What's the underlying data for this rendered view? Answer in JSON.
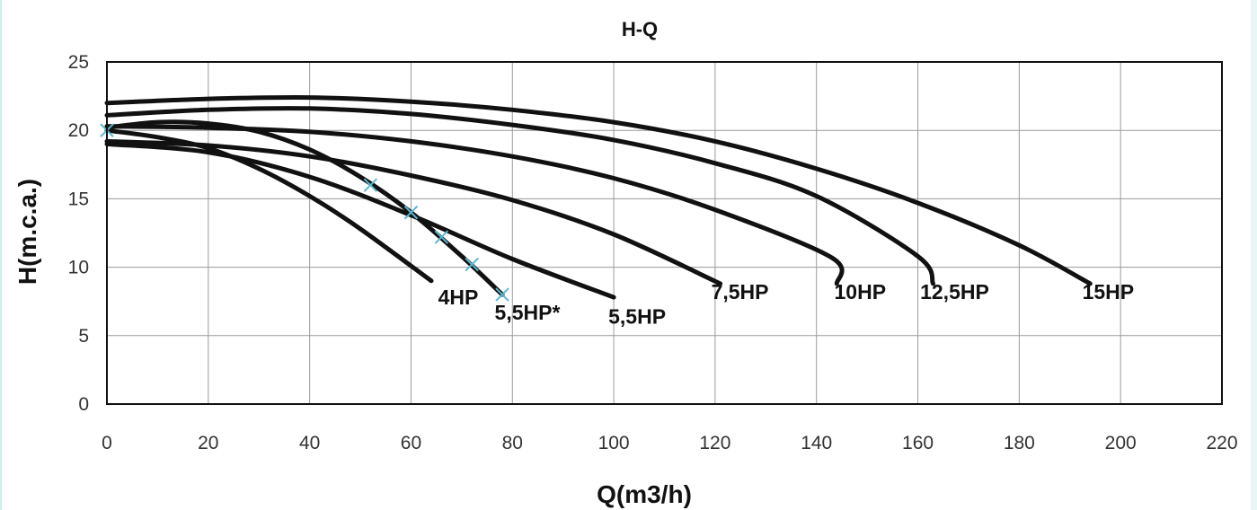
{
  "chart_data": {
    "type": "line",
    "title": "H-Q",
    "xlabel": "Q(m3/h)",
    "ylabel": "H(m.c.a.)",
    "xlim": [
      0,
      220
    ],
    "ylim": [
      0,
      25
    ],
    "x_ticks": [
      0,
      20,
      40,
      60,
      80,
      100,
      120,
      140,
      160,
      180,
      200,
      220
    ],
    "y_ticks": [
      0,
      5,
      10,
      15,
      20,
      25
    ],
    "grid": true,
    "legend": "none (series labeled at curve ends)",
    "line_color": "#111111",
    "marker_color": "#5ab8d0",
    "series": [
      {
        "name": "4HP",
        "points": [
          [
            0,
            20
          ],
          [
            10,
            19.5
          ],
          [
            20,
            18.7
          ],
          [
            30,
            17.2
          ],
          [
            40,
            15.2
          ],
          [
            50,
            12.8
          ],
          [
            64,
            9
          ]
        ]
      },
      {
        "name": "5,5HP*",
        "points": [
          [
            0,
            20.2
          ],
          [
            10,
            20.6
          ],
          [
            20,
            20.5
          ],
          [
            30,
            19.9
          ],
          [
            40,
            18.6
          ],
          [
            50,
            16.6
          ],
          [
            60,
            14
          ],
          [
            70,
            10.8
          ],
          [
            78,
            8
          ]
        ]
      },
      {
        "name": "5,5HP",
        "points": [
          [
            0,
            19
          ],
          [
            20,
            18.4
          ],
          [
            40,
            16.6
          ],
          [
            60,
            13.8
          ],
          [
            80,
            10.6
          ],
          [
            100,
            7.8
          ]
        ]
      },
      {
        "name": "7,5HP",
        "points": [
          [
            0,
            19.2
          ],
          [
            20,
            18.9
          ],
          [
            40,
            18.1
          ],
          [
            60,
            16.7
          ],
          [
            80,
            14.9
          ],
          [
            100,
            12.4
          ],
          [
            121,
            8.8
          ]
        ]
      },
      {
        "name": "10HP",
        "points": [
          [
            0,
            20.3
          ],
          [
            20,
            20.2
          ],
          [
            40,
            19.9
          ],
          [
            60,
            19.2
          ],
          [
            80,
            18.1
          ],
          [
            100,
            16.5
          ],
          [
            120,
            14.2
          ],
          [
            143,
            10.7
          ],
          [
            144,
            8.8
          ]
        ]
      },
      {
        "name": "12,5HP",
        "points": [
          [
            0,
            21.1
          ],
          [
            20,
            21.5
          ],
          [
            40,
            21.6
          ],
          [
            60,
            21.2
          ],
          [
            80,
            20.4
          ],
          [
            100,
            19.3
          ],
          [
            120,
            17.6
          ],
          [
            140,
            15.2
          ],
          [
            160,
            10.8
          ],
          [
            163,
            8.8
          ]
        ]
      },
      {
        "name": "15HP",
        "points": [
          [
            0,
            22
          ],
          [
            20,
            22.3
          ],
          [
            40,
            22.4
          ],
          [
            60,
            22.1
          ],
          [
            80,
            21.5
          ],
          [
            100,
            20.6
          ],
          [
            120,
            19.2
          ],
          [
            140,
            17.2
          ],
          [
            160,
            14.7
          ],
          [
            180,
            11.6
          ],
          [
            194,
            8.8
          ]
        ]
      }
    ],
    "markers": {
      "series": "5,5HP*",
      "points": [
        [
          0,
          20
        ],
        [
          52,
          16
        ],
        [
          60,
          14
        ],
        [
          66,
          12.2
        ],
        [
          72,
          10.2
        ],
        [
          78,
          8
        ]
      ]
    }
  }
}
